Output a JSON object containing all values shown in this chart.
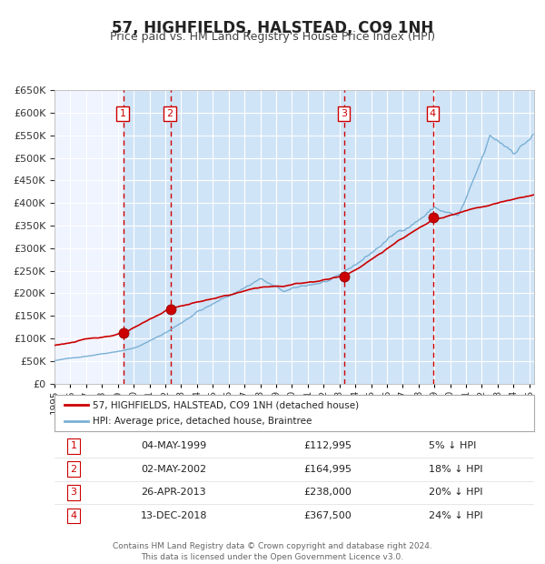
{
  "title": "57, HIGHFIELDS, HALSTEAD, CO9 1NH",
  "subtitle": "Price paid vs. HM Land Registry's House Price Index (HPI)",
  "legend_property": "57, HIGHFIELDS, HALSTEAD, CO9 1NH (detached house)",
  "legend_hpi": "HPI: Average price, detached house, Braintree",
  "footer1": "Contains HM Land Registry data © Crown copyright and database right 2024.",
  "footer2": "This data is licensed under the Open Government Licence v3.0.",
  "transactions": [
    {
      "num": 1,
      "date": "04-MAY-1999",
      "year": 1999.35,
      "price": 112995,
      "label": "5% ↓ HPI"
    },
    {
      "num": 2,
      "date": "02-MAY-2002",
      "year": 2002.33,
      "price": 164995,
      "label": "18% ↓ HPI"
    },
    {
      "num": 3,
      "date": "26-APR-2013",
      "year": 2013.32,
      "price": 238000,
      "label": "20% ↓ HPI"
    },
    {
      "num": 4,
      "date": "13-DEC-2018",
      "year": 2018.95,
      "price": 367500,
      "label": "24% ↓ HPI"
    }
  ],
  "property_color": "#cc0000",
  "hpi_color": "#7ab0d4",
  "background_color": "#ffffff",
  "plot_bg_color": "#f0f4ff",
  "grid_color": "#ffffff",
  "vline_color": "#cc0000",
  "shade_color": "#d0e4f7",
  "ylim": [
    0,
    650000
  ],
  "yticks": [
    0,
    50000,
    100000,
    150000,
    200000,
    250000,
    300000,
    350000,
    400000,
    450000,
    500000,
    550000,
    600000,
    650000
  ],
  "xlim_start": 1995.0,
  "xlim_end": 2025.3,
  "table_rows": [
    [
      "1",
      "04-MAY-1999",
      "£112,995",
      "5% ↓ HPI"
    ],
    [
      "2",
      "02-MAY-2002",
      "£164,995",
      "18% ↓ HPI"
    ],
    [
      "3",
      "26-APR-2013",
      "£238,000",
      "20% ↓ HPI"
    ],
    [
      "4",
      "13-DEC-2018",
      "£367,500",
      "24% ↓ HPI"
    ]
  ]
}
